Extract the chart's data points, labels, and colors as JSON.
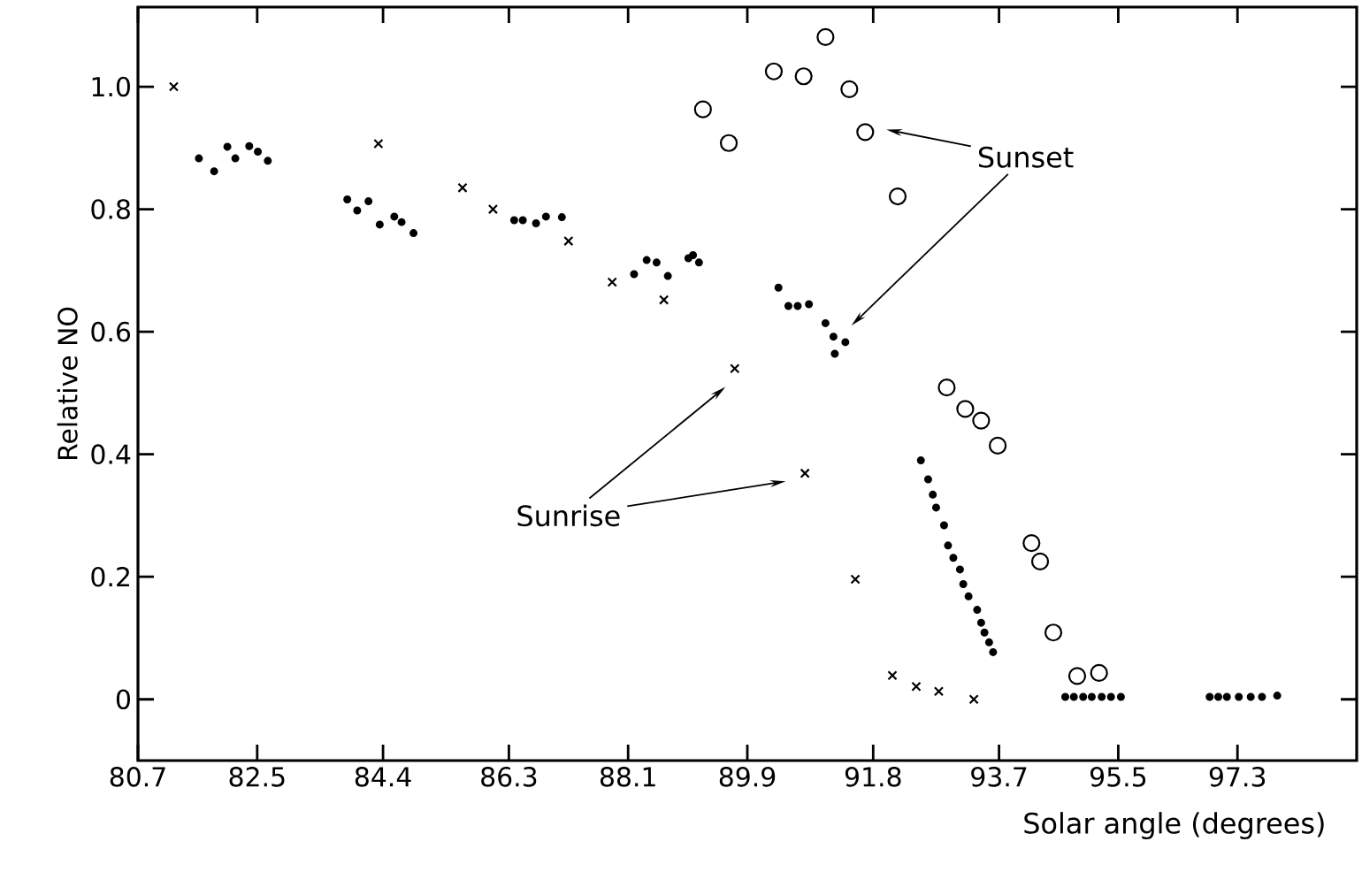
{
  "chart_data": {
    "type": "scatter",
    "xlabel": "Solar angle (degrees)",
    "ylabel": "Relative NO",
    "xlim": [
      80.7,
      99.1
    ],
    "ylim": [
      -0.1,
      1.13
    ],
    "xticks": [
      80.7,
      82.5,
      84.4,
      86.3,
      88.1,
      89.9,
      91.8,
      93.7,
      95.5,
      97.3
    ],
    "yticks": [
      0,
      0.2,
      0.4,
      0.6,
      0.8,
      {
        "value": 1.0,
        "label": "1.0"
      }
    ],
    "grid": false,
    "series": [
      {
        "color": "#000000",
        "marker": "cross",
        "x": [
          81.24,
          84.33,
          85.6,
          86.06,
          87.2,
          87.86,
          88.64,
          89.71,
          90.77,
          91.53,
          92.09,
          92.45,
          92.79,
          93.32
        ],
        "values": [
          1.0,
          0.907,
          0.835,
          0.8,
          0.748,
          0.681,
          0.652,
          0.54,
          0.369,
          0.196,
          0.039,
          0.021,
          0.013,
          0.0
        ]
      },
      {
        "color": "#000000",
        "marker": "circle",
        "x": [
          81.62,
          81.85,
          82.05,
          82.17,
          82.38,
          82.51,
          82.66,
          83.86,
          84.01,
          84.18,
          84.35,
          84.57,
          84.68,
          84.86,
          86.38,
          86.51,
          86.71,
          86.86,
          87.1,
          88.19,
          88.38,
          88.53,
          88.7,
          89.01,
          89.08,
          89.17,
          90.37,
          90.52,
          90.66,
          90.83,
          91.08,
          91.2,
          91.38,
          91.22,
          92.52,
          92.63,
          92.7,
          92.75,
          92.87,
          92.93,
          93.01,
          93.11,
          93.16,
          93.24,
          93.37,
          93.43,
          93.48,
          93.55,
          93.61,
          94.7,
          94.83,
          94.97,
          95.1,
          95.25,
          95.39,
          95.54,
          96.88,
          97.01,
          97.14,
          97.32,
          97.5,
          97.67,
          97.9
        ],
        "values": [
          0.883,
          0.862,
          0.902,
          0.883,
          0.903,
          0.894,
          0.879,
          0.816,
          0.798,
          0.813,
          0.775,
          0.788,
          0.779,
          0.761,
          0.782,
          0.782,
          0.777,
          0.788,
          0.787,
          0.694,
          0.717,
          0.713,
          0.691,
          0.72,
          0.725,
          0.713,
          0.672,
          0.642,
          0.642,
          0.645,
          0.614,
          0.592,
          0.583,
          0.564,
          0.39,
          0.359,
          0.334,
          0.313,
          0.284,
          0.251,
          0.231,
          0.212,
          0.188,
          0.168,
          0.146,
          0.125,
          0.109,
          0.093,
          0.077,
          0.004,
          0.004,
          0.004,
          0.004,
          0.004,
          0.004,
          0.004,
          0.004,
          0.004,
          0.004,
          0.004,
          0.004,
          0.004,
          0.006
        ]
      },
      {
        "color": "#000000",
        "marker": "circle",
        "x": [
          89.23,
          89.62,
          90.3,
          90.75,
          91.08,
          91.44,
          91.68,
          92.17,
          92.91,
          93.19,
          93.43,
          93.68,
          94.19,
          94.32,
          94.52,
          94.88,
          95.21
        ],
        "values": [
          0.963,
          0.908,
          1.025,
          1.017,
          1.081,
          0.996,
          0.926,
          0.821,
          0.509,
          0.474,
          0.455,
          0.414,
          0.255,
          0.225,
          0.109,
          0.038,
          0.043
        ]
      }
    ],
    "annotations": [
      "Sunset",
      "Sunrise"
    ]
  }
}
